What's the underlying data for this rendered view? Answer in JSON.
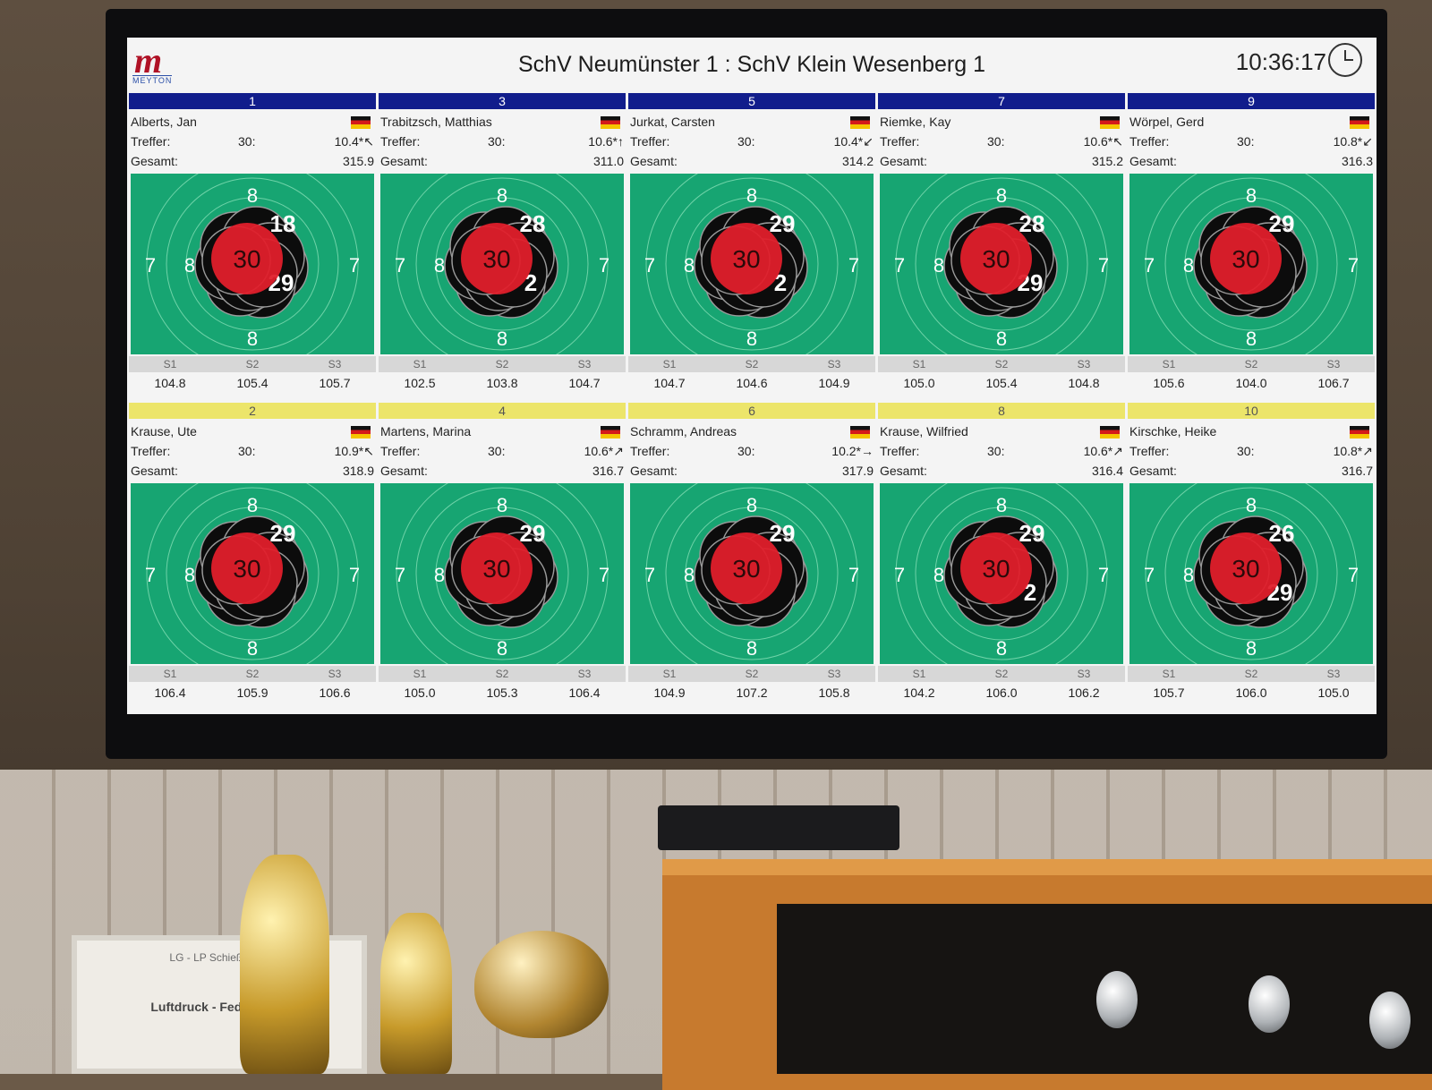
{
  "header": {
    "logo_mark": "m",
    "logo_text": "MEYTON",
    "title": "SchV Neumünster 1 : SchV Klein Wesenberg 1",
    "time": "10:36:17"
  },
  "labels": {
    "treffer": "Treffer:",
    "gesamt": "Gesamt:",
    "s1": "S1",
    "s2": "S2",
    "s3": "S3"
  },
  "shooters": [
    {
      "lane": "1",
      "team_color": "#111d8c",
      "name": "Alberts, Jan",
      "shots": "30:",
      "last": "10.4*↖",
      "total": "315.9",
      "s1": "104.8",
      "s2": "105.4",
      "s3": "105.7",
      "hit_main": "30",
      "hit_others": [
        "18",
        "29"
      ]
    },
    {
      "lane": "3",
      "team_color": "#111d8c",
      "name": "Trabitzsch, Matthias",
      "shots": "30:",
      "last": "10.6*↑",
      "total": "311.0",
      "s1": "102.5",
      "s2": "103.8",
      "s3": "104.7",
      "hit_main": "30",
      "hit_others": [
        "28",
        "2"
      ]
    },
    {
      "lane": "5",
      "team_color": "#111d8c",
      "name": "Jurkat, Carsten",
      "shots": "30:",
      "last": "10.4*↙",
      "total": "314.2",
      "s1": "104.7",
      "s2": "104.6",
      "s3": "104.9",
      "hit_main": "30",
      "hit_others": [
        "29",
        "2"
      ]
    },
    {
      "lane": "7",
      "team_color": "#111d8c",
      "name": "Riemke, Kay",
      "shots": "30:",
      "last": "10.6*↖",
      "total": "315.2",
      "s1": "105.0",
      "s2": "105.4",
      "s3": "104.8",
      "hit_main": "30",
      "hit_others": [
        "28",
        "29"
      ]
    },
    {
      "lane": "9",
      "team_color": "#111d8c",
      "name": "Wörpel, Gerd",
      "shots": "30:",
      "last": "10.8*↙",
      "total": "316.3",
      "s1": "105.6",
      "s2": "104.0",
      "s3": "106.7",
      "hit_main": "30",
      "hit_others": [
        "29"
      ]
    },
    {
      "lane": "2",
      "team_color": "#ece56a",
      "name": "Krause, Ute",
      "shots": "30:",
      "last": "10.9*↖",
      "total": "318.9",
      "s1": "106.4",
      "s2": "105.9",
      "s3": "106.6",
      "hit_main": "30",
      "hit_others": [
        "29"
      ]
    },
    {
      "lane": "4",
      "team_color": "#ece56a",
      "name": "Martens, Marina",
      "shots": "30:",
      "last": "10.6*↗",
      "total": "316.7",
      "s1": "105.0",
      "s2": "105.3",
      "s3": "106.4",
      "hit_main": "30",
      "hit_others": [
        "29"
      ]
    },
    {
      "lane": "6",
      "team_color": "#ece56a",
      "name": "Schramm, Andreas",
      "shots": "30:",
      "last": "10.2*→",
      "total": "317.9",
      "s1": "104.9",
      "s2": "107.2",
      "s3": "105.8",
      "hit_main": "30",
      "hit_others": [
        "29"
      ]
    },
    {
      "lane": "8",
      "team_color": "#ece56a",
      "name": "Krause, Wilfried",
      "shots": "30:",
      "last": "10.6*↗",
      "total": "316.4",
      "s1": "104.2",
      "s2": "106.0",
      "s3": "106.2",
      "hit_main": "30",
      "hit_others": [
        "29",
        "2"
      ]
    },
    {
      "lane": "10",
      "team_color": "#ece56a",
      "name": "Kirschke, Heike",
      "shots": "30:",
      "last": "10.8*↗",
      "total": "316.7",
      "s1": "105.7",
      "s2": "106.0",
      "s3": "105.0",
      "hit_main": "30",
      "hit_others": [
        "26",
        "29"
      ]
    }
  ],
  "ring_labels": {
    "seven": "7",
    "eight": "8"
  },
  "colors": {
    "target_green": "#17a572",
    "hit_red": "#e01f2b",
    "hit_black": "#0c0c0c",
    "blue_team": "#111d8c",
    "yellow_team": "#ece56a"
  },
  "room": {
    "certificate_title": "LG - LP Schießstand",
    "certificate_line": "Luftdruck - Federdruck"
  }
}
